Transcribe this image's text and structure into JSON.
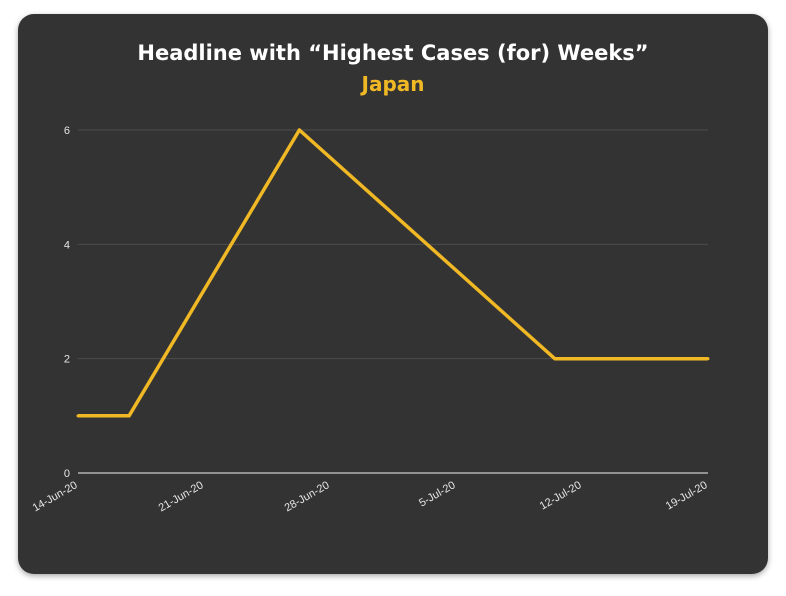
{
  "header": {
    "title": "Headline with “Highest Cases (for) Weeks”",
    "subtitle": "Japan"
  },
  "colors": {
    "background": "#333333",
    "line": "#f0b825",
    "grid": "#4d4d4d",
    "axis": "#cccccc"
  },
  "chart_data": {
    "type": "line",
    "title": "Headline with “Highest Cases (for) Weeks”",
    "subtitle": "Japan",
    "xlabel": "",
    "ylabel": "",
    "x_tick_labels": [
      "14-Jun-20",
      "21-Jun-20",
      "28-Jun-20",
      "5-Jul-20",
      "12-Jul-20",
      "19-Jul-20"
    ],
    "y_tick_labels": [
      "0",
      "2",
      "4",
      "6"
    ],
    "ylim": [
      0,
      6
    ],
    "xlim": [
      "2020-06-12",
      "2020-07-19"
    ],
    "grid": true,
    "legend": "none",
    "series": [
      {
        "x": [
          "2020-06-12",
          "2020-06-15",
          "2020-06-25",
          "2020-07-10",
          "2020-07-19"
        ],
        "y": [
          1,
          1,
          6,
          2,
          2
        ]
      }
    ]
  }
}
